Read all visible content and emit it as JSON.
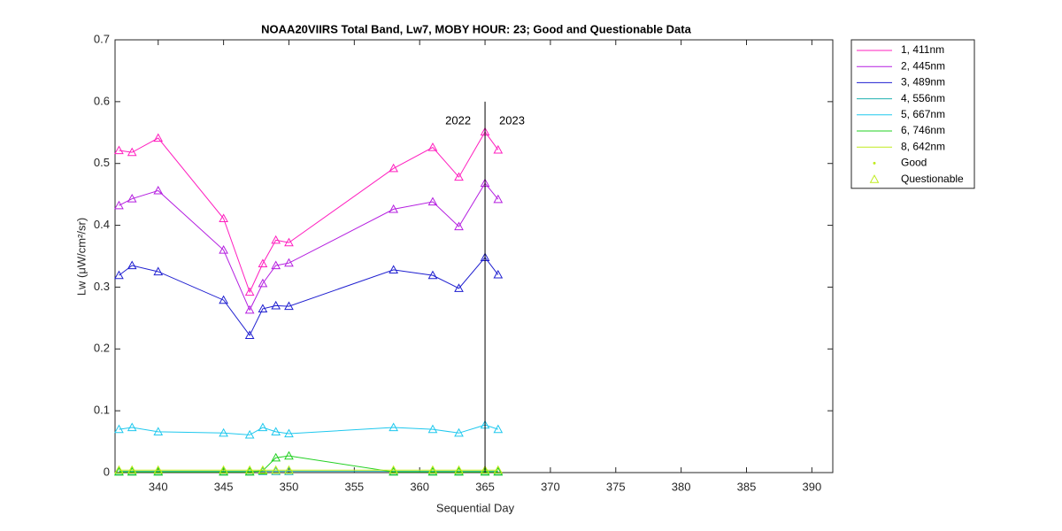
{
  "chart_data": {
    "type": "line",
    "title": "NOAA20VIIRS Total Band,  Lw7, MOBY HOUR: 23;  Good and Questionable Data",
    "x_label": "Sequential Day",
    "y_label": "Lw (μW/cm²/sr)",
    "x": [
      337,
      338,
      340,
      345,
      347,
      348,
      349,
      350,
      358,
      361,
      363,
      365,
      366
    ],
    "series": [
      {
        "name": "1, 411nm",
        "color": "#ff1fbf",
        "values": [
          0.521,
          0.518,
          0.541,
          0.411,
          0.292,
          0.338,
          0.376,
          0.372,
          0.492,
          0.526,
          0.478,
          0.551,
          0.522
        ]
      },
      {
        "name": "2, 445nm",
        "color": "#b51fe0",
        "values": [
          0.432,
          0.443,
          0.456,
          0.36,
          0.263,
          0.306,
          0.335,
          0.339,
          0.426,
          0.438,
          0.398,
          0.468,
          0.442
        ]
      },
      {
        "name": "3, 489nm",
        "color": "#1f1fd0",
        "values": [
          0.319,
          0.335,
          0.325,
          0.279,
          0.222,
          0.265,
          0.27,
          0.269,
          0.328,
          0.319,
          0.298,
          0.348,
          0.32
        ]
      },
      {
        "name": "4, 556nm",
        "color": "#1fb0b0",
        "values": [
          0.002,
          0.002,
          0.002,
          0.002,
          0.002,
          0.002,
          0.002,
          0.002,
          0.002,
          0.002,
          0.002,
          0.002,
          0.002
        ]
      },
      {
        "name": "5, 667nm",
        "color": "#1fc8ee",
        "values": [
          0.07,
          0.073,
          0.066,
          0.064,
          0.061,
          0.073,
          0.066,
          0.063,
          0.073,
          0.07,
          0.064,
          0.077,
          0.07
        ]
      },
      {
        "name": "6, 746nm",
        "color": "#22d022",
        "values": [
          0.001,
          0.001,
          0.001,
          0.001,
          0.001,
          0.003,
          0.024,
          0.027,
          0.001,
          0.001,
          0.001,
          0.001,
          0.001
        ]
      },
      {
        "name": "8, 642nm",
        "color": "#c0ec1f",
        "values": [
          0.004,
          0.004,
          0.004,
          0.004,
          0.004,
          0.004,
          0.004,
          0.004,
          0.004,
          0.004,
          0.004,
          0.004,
          0.004
        ]
      }
    ],
    "marker_legend": [
      {
        "name": "Good",
        "color": "#c0ec1f",
        "marker": "dot"
      },
      {
        "name": "Questionable",
        "color": "#c0ec1f",
        "marker": "triangle"
      }
    ],
    "vline": {
      "x": 365,
      "y": [
        0,
        0.6
      ],
      "color": "#000000"
    },
    "annotations": [
      "2022",
      "2023"
    ],
    "xlim": [
      336.7,
      391.6
    ],
    "ylim": [
      0,
      0.7
    ],
    "xticks": [
      340,
      345,
      350,
      355,
      360,
      365,
      370,
      375,
      380,
      385,
      390
    ],
    "yticks": [
      0,
      0.1,
      0.2,
      0.3,
      0.4,
      0.5,
      0.6,
      0.7
    ],
    "legend": "outside-right"
  }
}
